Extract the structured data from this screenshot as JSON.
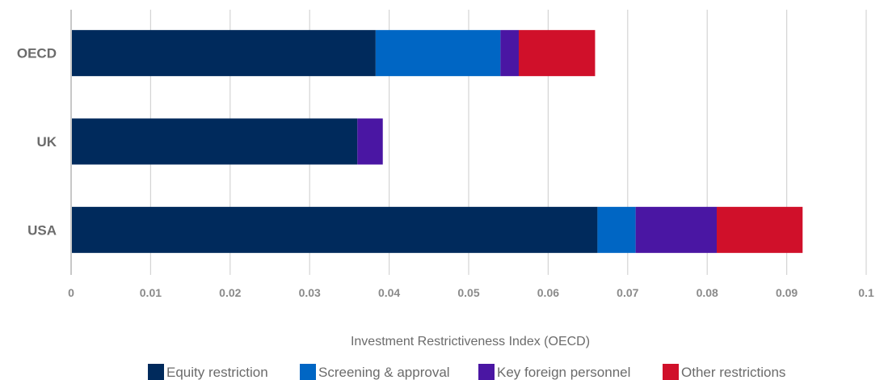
{
  "chart_data": {
    "type": "bar",
    "orientation": "horizontal",
    "stacked": true,
    "categories": [
      "OECD",
      "UK",
      "USA"
    ],
    "series": [
      {
        "name": "Equity restriction",
        "color": "#002a5c",
        "values": [
          0.0383,
          0.036,
          0.0662
        ]
      },
      {
        "name": "Screening & approval",
        "color": "#0066c4",
        "values": [
          0.0157,
          0.0,
          0.0048
        ]
      },
      {
        "name": "Key foreign personnel",
        "color": "#4a16a3",
        "values": [
          0.0023,
          0.0032,
          0.0102
        ]
      },
      {
        "name": "Other restrictions",
        "color": "#d0102a",
        "values": [
          0.0096,
          0.0,
          0.0108
        ]
      }
    ],
    "xlim": [
      0,
      0.1
    ],
    "x_ticks": [
      "0",
      "0.01",
      "0.02",
      "0.03",
      "0.04",
      "0.05",
      "0.06",
      "0.07",
      "0.08",
      "0.09",
      "0.1"
    ],
    "xlabel": "Investment Restrictiveness Index (OECD)",
    "grid": "vertical",
    "legend_position": "bottom"
  }
}
